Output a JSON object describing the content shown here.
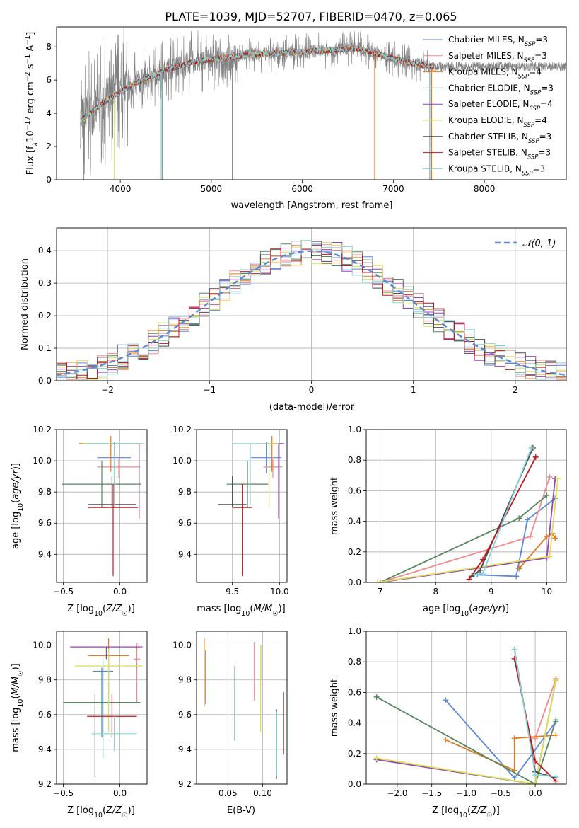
{
  "title": "PLATE=1039, MJD=52707, FIBERID=0470, z=0.065",
  "colors": {
    "chabrier_miles": "#5b87d6",
    "salpeter_miles": "#f08a8e",
    "kroupa_miles": "#e07b22",
    "chabrier_elodie": "#56875f",
    "salpeter_elodie": "#9b3fbf",
    "kroupa_elodie": "#d9e24f",
    "chabrier_stelib": "#4a4a4a",
    "salpeter_stelib": "#c0171c",
    "kroupa_stelib": "#88d4d8",
    "observed": "#808080",
    "normal": "#5b87d6",
    "grid": "#b0b0b0"
  },
  "legend": [
    {
      "base": "Chabrier MILES, N",
      "sub": "SSP",
      "tail": "=3",
      "color": "#5b87d6"
    },
    {
      "base": "Salpeter MILES, N",
      "sub": "SSP",
      "tail": "=3",
      "color": "#f08a8e"
    },
    {
      "base": "Kroupa MILES, N",
      "sub": "SSP",
      "tail": "=4",
      "color": "#e07b22"
    },
    {
      "base": "Chabrier ELODIE, N",
      "sub": "SSP",
      "tail": "=3",
      "color": "#56875f"
    },
    {
      "base": "Salpeter ELODIE, N",
      "sub": "SSP",
      "tail": "=4",
      "color": "#9b3fbf"
    },
    {
      "base": "Kroupa ELODIE, N",
      "sub": "SSP",
      "tail": "=4",
      "color": "#d9e24f"
    },
    {
      "base": "Chabrier STELIB, N",
      "sub": "SSP",
      "tail": "=3",
      "color": "#4a4a4a"
    },
    {
      "base": "Salpeter STELIB, N",
      "sub": "SSP",
      "tail": "=3",
      "color": "#c0171c"
    },
    {
      "base": "Kroupa STELIB, N",
      "sub": "SSP",
      "tail": "=3",
      "color": "#88d4d8"
    }
  ],
  "chart_data": [
    {
      "type": "line",
      "panel": "spectrum",
      "xlabel": "wavelength [Angstrom, rest frame]",
      "ylabel_parts": {
        "a": "Flux [f",
        "b": "λ",
        "c": "10",
        "d": "−17",
        "e": " erg cm",
        "f": "−2",
        "g": " s",
        "h": "−1",
        "i": " A",
        "j": "−1",
        "k": "]"
      },
      "xlim": [
        3300,
        8900
      ],
      "ylim": [
        0,
        9.2
      ],
      "xticks": [
        4000,
        5000,
        6000,
        7000,
        8000
      ],
      "yticks": [
        0,
        2,
        4,
        6,
        8
      ],
      "continuum": {
        "x": [
          3560,
          3800,
          4000,
          4200,
          4500,
          4800,
          5100,
          5400,
          5700,
          6000,
          6300,
          6600,
          6800,
          7000,
          7200,
          7450
        ],
        "y": [
          3.5,
          4.6,
          5.3,
          5.9,
          6.6,
          7.1,
          7.3,
          7.5,
          7.6,
          7.7,
          7.8,
          7.9,
          7.6,
          7.3,
          7.0,
          6.8
        ]
      },
      "legend_loc": "upper right"
    },
    {
      "type": "bar",
      "panel": "residual-histogram",
      "xlabel": "(data-model)/error",
      "ylabel": "Normed distribution",
      "xlim": [
        -2.5,
        2.5
      ],
      "ylim": [
        0,
        0.47
      ],
      "xticks": [
        -2,
        -1,
        0,
        1,
        2
      ],
      "xtick_labels": [
        "−2",
        "−1",
        "0",
        "1",
        "2"
      ],
      "yticks": [
        0.0,
        0.1,
        0.2,
        0.3,
        0.4
      ],
      "ytick_labels": [
        "0.0",
        "0.1",
        "0.2",
        "0.3",
        "0.4"
      ],
      "bin_width": 0.1,
      "reference": {
        "label": "𝒩(0, 1)",
        "mean": 0,
        "sigma": 1
      },
      "legend_loc": "upper right"
    },
    {
      "type": "scatter",
      "panel": "age-vs-Z",
      "xlabel": "Z [log10(Z/Z☉)]",
      "ylabel": "age  [log10(age/yr)]",
      "xlim": [
        -0.56,
        0.24
      ],
      "ylim": [
        9.22,
        10.2
      ],
      "xticks": [
        -0.5,
        0.0
      ],
      "xtick_labels": [
        "−0.5",
        "0.0"
      ],
      "yticks": [
        9.4,
        9.6,
        9.8,
        10.0,
        10.2
      ],
      "ytick_labels": [
        "9.4",
        "9.6",
        "9.8",
        "10.0",
        "10.2"
      ],
      "points": [
        {
          "x": -0.05,
          "xerr": 0.15,
          "y": 10.02,
          "yerr": [
            0.1,
            0.1
          ],
          "color": "#5b87d6"
        },
        {
          "x": -0.01,
          "xerr": 0.19,
          "y": 9.96,
          "yerr": [
            0.07,
            0.05
          ],
          "color": "#f08a8e"
        },
        {
          "x": -0.08,
          "xerr": 0.28,
          "y": 10.11,
          "yerr": [
            0.18,
            0.05
          ],
          "color": "#e07b22"
        },
        {
          "x": -0.16,
          "xerr": 0.35,
          "y": 9.85,
          "yerr": [
            0.15,
            0.15
          ],
          "color": "#56875f"
        },
        {
          "x": 0.17,
          "xerr": 0.03,
          "y": 10.11,
          "yerr": [
            0.48,
            0.0
          ],
          "color": "#9b3fbf"
        },
        {
          "x": -0.05,
          "xerr": 0.27,
          "y": 10.11,
          "yerr": [
            0.41,
            0.0
          ],
          "color": "#d9e24f"
        },
        {
          "x": -0.07,
          "xerr": 0.21,
          "y": 9.72,
          "yerr": [
            0.02,
            0.18
          ],
          "color": "#4a4a4a"
        },
        {
          "x": -0.06,
          "xerr": 0.22,
          "y": 9.7,
          "yerr": [
            0.44,
            0.15
          ],
          "color": "#c0171c"
        },
        {
          "x": -0.05,
          "xerr": 0.25,
          "y": 10.11,
          "yerr": [
            0.4,
            0.0
          ],
          "color": "#88d4d8"
        }
      ]
    },
    {
      "type": "scatter",
      "panel": "age-vs-mass",
      "xlabel": "mass [log10(M/M☉)]",
      "ylabel": "",
      "xlim": [
        9.12,
        10.08
      ],
      "ylim": [
        9.22,
        10.2
      ],
      "xticks": [
        9.5,
        10.0
      ],
      "xtick_labels": [
        "9.5",
        "10.0"
      ],
      "yticks": [
        9.4,
        9.6,
        9.8,
        10.0,
        10.2
      ],
      "ytick_labels": [
        "9.4",
        "9.6",
        "9.8",
        "10.0",
        "10.2"
      ],
      "points": [
        {
          "x": 9.86,
          "xerr": 0.16,
          "y": 10.02,
          "yerr": [
            0.1,
            0.1
          ],
          "color": "#5b87d6"
        },
        {
          "x": 9.93,
          "xerr": 0.1,
          "y": 9.96,
          "yerr": [
            0.07,
            0.05
          ],
          "color": "#f08a8e"
        },
        {
          "x": 9.92,
          "xerr": 0.07,
          "y": 10.11,
          "yerr": [
            0.18,
            0.05
          ],
          "color": "#e07b22"
        },
        {
          "x": 9.66,
          "xerr": 0.22,
          "y": 9.85,
          "yerr": [
            0.15,
            0.15
          ],
          "color": "#56875f"
        },
        {
          "x": 9.99,
          "xerr": 0.06,
          "y": 10.11,
          "yerr": [
            0.48,
            0.0
          ],
          "color": "#9b3fbf"
        },
        {
          "x": 9.89,
          "xerr": 0.1,
          "y": 10.11,
          "yerr": [
            0.41,
            0.0
          ],
          "color": "#d9e24f"
        },
        {
          "x": 9.5,
          "xerr": 0.15,
          "y": 9.72,
          "yerr": [
            0.02,
            0.18
          ],
          "color": "#4a4a4a"
        },
        {
          "x": 9.61,
          "xerr": 0.1,
          "y": 9.7,
          "yerr": [
            0.44,
            0.15
          ],
          "color": "#c0171c"
        },
        {
          "x": 9.69,
          "xerr": 0.19,
          "y": 10.11,
          "yerr": [
            0.4,
            0.0
          ],
          "color": "#88d4d8"
        }
      ]
    },
    {
      "type": "line",
      "panel": "mass-weight-vs-age",
      "xlabel": "age  [log10(age/yr)]",
      "ylabel": "mass weight",
      "xlim": [
        6.75,
        10.35
      ],
      "ylim": [
        0,
        1
      ],
      "xticks": [
        7,
        8,
        9,
        10
      ],
      "xtick_labels": [
        "7",
        "8",
        "9",
        "10"
      ],
      "yticks": [
        0.0,
        0.2,
        0.4,
        0.6,
        0.8,
        1.0
      ],
      "ytick_labels": [
        "0.0",
        "0.2",
        "0.4",
        "0.6",
        "0.8",
        "1.0"
      ],
      "series": [
        {
          "color": "#5b87d6",
          "x": [
            8.75,
            9.45,
            9.65,
            10.15
          ],
          "y": [
            0.05,
            0.04,
            0.41,
            0.55
          ]
        },
        {
          "color": "#f08a8e",
          "x": [
            7.0,
            9.7,
            10.05
          ],
          "y": [
            0.0,
            0.3,
            0.69
          ]
        },
        {
          "color": "#e07b22",
          "x": [
            9.5,
            10.0,
            10.1,
            10.15
          ],
          "y": [
            0.09,
            0.3,
            0.32,
            0.29
          ]
        },
        {
          "color": "#56875f",
          "x": [
            7.0,
            9.5,
            10.0
          ],
          "y": [
            0.0,
            0.42,
            0.57
          ]
        },
        {
          "color": "#9b3fbf",
          "x": [
            7.0,
            10.0,
            10.15
          ],
          "y": [
            0.0,
            0.16,
            0.68
          ]
        },
        {
          "color": "#d9e24f",
          "x": [
            6.95,
            10.05,
            10.2
          ],
          "y": [
            0.0,
            0.17,
            0.68
          ]
        },
        {
          "color": "#4a4a4a",
          "x": [
            8.65,
            8.8,
            9.75
          ],
          "y": [
            0.04,
            0.08,
            0.88
          ]
        },
        {
          "color": "#c0171c",
          "x": [
            8.6,
            8.85,
            9.8
          ],
          "y": [
            0.02,
            0.15,
            0.82
          ]
        },
        {
          "color": "#88d4d8",
          "x": [
            8.7,
            8.85,
            9.72
          ],
          "y": [
            0.05,
            0.06,
            0.88
          ]
        }
      ]
    },
    {
      "type": "scatter",
      "panel": "mass-vs-Z",
      "xlabel": "Z [log10(Z/Z☉)]",
      "ylabel": "mass [log10(M/M☉)]",
      "xlim": [
        -0.56,
        0.24
      ],
      "ylim": [
        9.2,
        10.08
      ],
      "xticks": [
        -0.5,
        0.0
      ],
      "xtick_labels": [
        "−0.5",
        "0.0"
      ],
      "yticks": [
        9.2,
        9.4,
        9.6,
        9.8,
        10.0
      ],
      "ytick_labels": [
        "9.2",
        "9.4",
        "9.6",
        "9.8",
        "10.0"
      ],
      "points": [
        {
          "x": -0.15,
          "xerr": 0.09,
          "y": 9.85,
          "yerr": [
            0.5,
            0.07
          ],
          "color": "#5b87d6"
        },
        {
          "x": 0.15,
          "xerr": 0.03,
          "y": 9.92,
          "yerr": [
            0.25,
            0.09
          ],
          "color": "#f08a8e"
        },
        {
          "x": -0.1,
          "xerr": 0.18,
          "y": 9.94,
          "yerr": [
            0.28,
            0.1
          ],
          "color": "#e07b22"
        },
        {
          "x": -0.16,
          "xerr": 0.34,
          "y": 9.67,
          "yerr": [
            0.2,
            0.2
          ],
          "color": "#56875f"
        },
        {
          "x": -0.12,
          "xerr": 0.32,
          "y": 9.99,
          "yerr": [
            0.07,
            0.0
          ],
          "color": "#9b3fbf"
        },
        {
          "x": -0.1,
          "xerr": 0.3,
          "y": 9.88,
          "yerr": [
            0.38,
            0.1
          ],
          "color": "#d9e24f"
        },
        {
          "x": -0.22,
          "xerr": 0.0,
          "y": 9.62,
          "yerr": [
            0.38,
            0.1
          ],
          "color": "#4a4a4a"
        },
        {
          "x": -0.07,
          "xerr": 0.22,
          "y": 9.59,
          "yerr": [
            0.12,
            0.13
          ],
          "color": "#c0171c"
        },
        {
          "x": -0.05,
          "xerr": 0.2,
          "y": 9.49,
          "yerr": [
            0.1,
            0.1
          ],
          "color": "#88d4d8"
        }
      ]
    },
    {
      "type": "scatter",
      "panel": "mass-vs-ebv",
      "xlabel": "E(B-V)",
      "ylabel": "",
      "xlim": [
        0.005,
        0.135
      ],
      "ylim": [
        9.2,
        10.08
      ],
      "xticks": [
        0.05,
        0.1
      ],
      "xtick_labels": [
        "0.05",
        "0.10"
      ],
      "yticks": [
        9.2,
        9.4,
        9.6,
        9.8,
        10.0
      ],
      "ytick_labels": [
        "9.2",
        "9.4",
        "9.6",
        "9.8",
        "10.0"
      ],
      "points": [
        {
          "x": 0.018,
          "y": 9.82,
          "yerr": [
            0.16,
            0.15
          ],
          "color": "#5b87d6"
        },
        {
          "x": 0.088,
          "y": 9.85,
          "yerr": [
            0.17,
            0.17
          ],
          "color": "#f08a8e"
        },
        {
          "x": 0.016,
          "y": 9.85,
          "yerr": [
            0.2,
            0.19
          ],
          "color": "#e07b22"
        },
        {
          "x": 0.06,
          "y": 9.67,
          "yerr": [
            0.22,
            0.21
          ],
          "color": "#56875f"
        },
        {
          "x": 0.097,
          "y": 9.9,
          "yerr": [
            0.1,
            0.1
          ],
          "color": "#9b3fbf"
        },
        {
          "x": 0.097,
          "y": 9.75,
          "yerr": [
            0.25,
            0.25
          ],
          "color": "#d9e24f"
        },
        {
          "x": 0.12,
          "y": 9.43,
          "yerr": [
            0.2,
            0.2
          ],
          "color": "#4a4a4a"
        },
        {
          "x": 0.13,
          "y": 9.55,
          "yerr": [
            0.18,
            0.18
          ],
          "color": "#c0171c"
        },
        {
          "x": 0.12,
          "y": 9.43,
          "yerr": [
            0.19,
            0.19
          ],
          "color": "#88d4d8"
        }
      ]
    },
    {
      "type": "line",
      "panel": "mass-weight-vs-Z",
      "xlabel": "Z [log10(Z/Z☉)]",
      "ylabel": "mass weight",
      "xlim": [
        -2.45,
        0.45
      ],
      "ylim": [
        0,
        1
      ],
      "xticks": [
        -2.0,
        -1.5,
        -1.0,
        -0.5,
        0.0
      ],
      "xtick_labels": [
        "−2.0",
        "−1.5",
        "−1.0",
        "−0.5",
        "0.0"
      ],
      "yticks": [
        0.0,
        0.2,
        0.4,
        0.6,
        0.8,
        1.0
      ],
      "ytick_labels": [
        "0.0",
        "0.2",
        "0.4",
        "0.6",
        "0.8",
        "1.0"
      ],
      "series": [
        {
          "color": "#5b87d6",
          "x": [
            -1.3,
            -0.3,
            0.3
          ],
          "y": [
            0.55,
            0.04,
            0.41
          ]
        },
        {
          "color": "#f08a8e",
          "x": [
            0.0,
            0.3
          ],
          "y": [
            0.3,
            0.69
          ]
        },
        {
          "color": "#e07b22",
          "x": [
            -1.3,
            -0.3,
            -0.3,
            0.3
          ],
          "y": [
            0.29,
            0.09,
            0.3,
            0.32
          ]
        },
        {
          "color": "#56875f",
          "x": [
            -2.3,
            0.0,
            0.3
          ],
          "y": [
            0.57,
            0.0,
            0.42
          ]
        },
        {
          "color": "#9b3fbf",
          "x": [
            -2.3,
            0.0,
            0.3
          ],
          "y": [
            0.16,
            0.0,
            0.68
          ]
        },
        {
          "color": "#d9e24f",
          "x": [
            -2.3,
            0.0,
            0.3
          ],
          "y": [
            0.17,
            0.0,
            0.68
          ]
        },
        {
          "color": "#4a4a4a",
          "x": [
            -0.3,
            0.0,
            0.3
          ],
          "y": [
            0.88,
            0.08,
            0.04
          ]
        },
        {
          "color": "#c0171c",
          "x": [
            -0.3,
            0.0,
            0.3
          ],
          "y": [
            0.82,
            0.15,
            0.02
          ]
        },
        {
          "color": "#88d4d8",
          "x": [
            -0.3,
            0.0,
            0.3
          ],
          "y": [
            0.88,
            0.06,
            0.05
          ]
        }
      ]
    }
  ]
}
